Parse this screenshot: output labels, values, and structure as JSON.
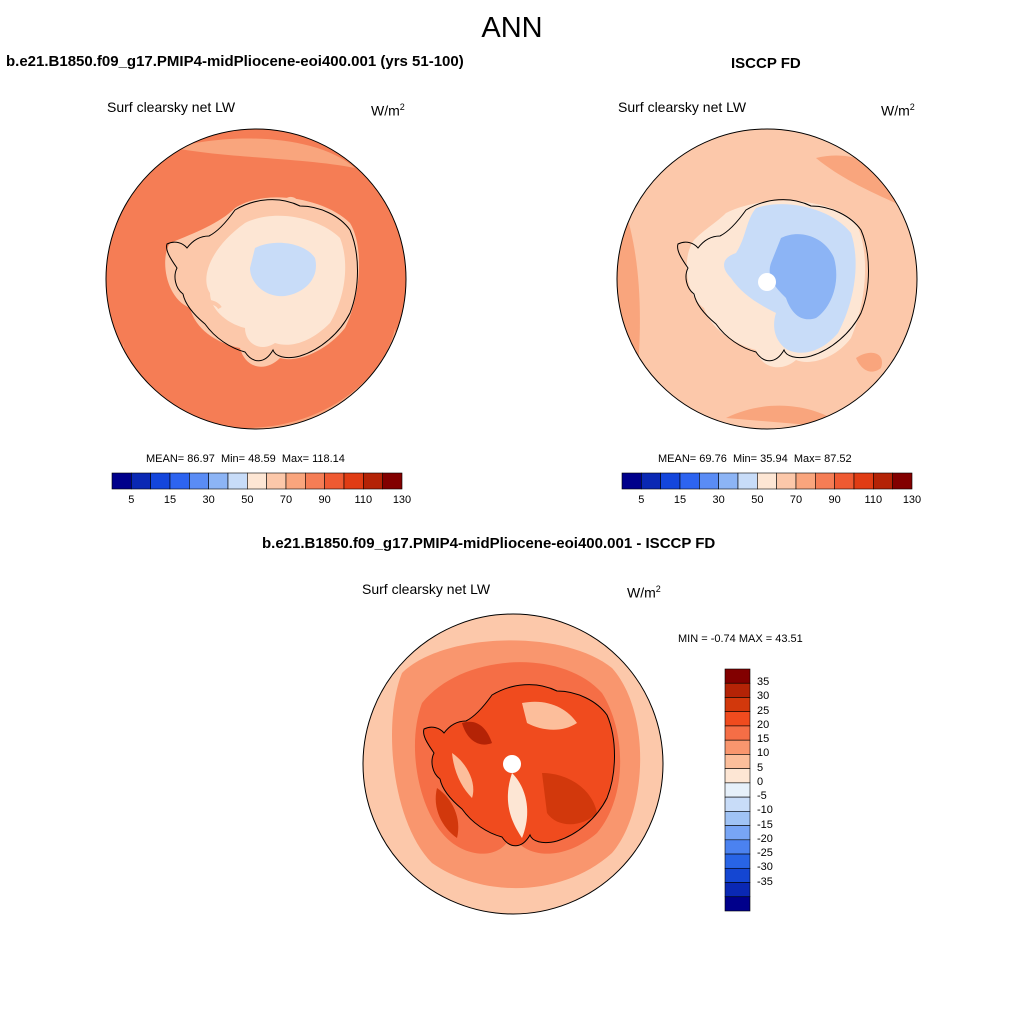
{
  "main_title": "ANN",
  "panels": {
    "model": {
      "title": "b.e21.B1850.f09_g17.PMIP4-midPliocene-eoi400.001 (yrs 51-100)",
      "variable": "Surf clearsky net LW",
      "units_base": "W/m",
      "units_exp": "2",
      "stats": {
        "mean_label": "MEAN=",
        "mean": "86.97",
        "min_label": "Min=",
        "min": "48.59",
        "max_label": "Max=",
        "max": "118.14"
      }
    },
    "obs": {
      "title": "ISCCP FD",
      "variable": "Surf clearsky net LW",
      "units_base": "W/m",
      "units_exp": "2",
      "stats": {
        "mean_label": "MEAN=",
        "mean": "69.76",
        "min_label": "Min=",
        "min": "35.94",
        "max_label": "Max=",
        "max": "87.52"
      }
    },
    "diff": {
      "title": "b.e21.B1850.f09_g17.PMIP4-midPliocene-eoi400.001 - ISCCP FD",
      "variable": "Surf clearsky net LW",
      "units_base": "W/m",
      "units_exp": "2",
      "stats": {
        "min_label": "MIN =",
        "min": "-0.74",
        "max_label": "MAX =",
        "max": "43.51"
      }
    }
  },
  "colorbar_top": {
    "colors": [
      "#00008b",
      "#0a28b4",
      "#1446dc",
      "#2d64f0",
      "#5a8cf5",
      "#8cb4f5",
      "#c8dcf8",
      "#fde6d4",
      "#fcc8aa",
      "#f9a57d",
      "#f57d55",
      "#ef5a32",
      "#e03c14",
      "#b42306",
      "#820000"
    ],
    "tick_labels": [
      "5",
      "15",
      "30",
      "50",
      "70",
      "90",
      "110",
      "130"
    ]
  },
  "colorbar_diff": {
    "colors": [
      "#820000",
      "#b42306",
      "#d2380c",
      "#f04b1e",
      "#f56e46",
      "#f9966e",
      "#fcbe9b",
      "#fde6d4",
      "#e6f0fa",
      "#c8dcf8",
      "#a0c3f5",
      "#78a5f5",
      "#4b82f0",
      "#2864e6",
      "#1446d2",
      "#0a28b4",
      "#00008b"
    ],
    "tick_labels": [
      "35",
      "30",
      "25",
      "20",
      "15",
      "10",
      "5",
      "0",
      "-5",
      "-10",
      "-15",
      "-20",
      "-25",
      "-30",
      "-35"
    ]
  },
  "map_fields": {
    "model": {
      "ocean": "#f57d55",
      "ocean_inner": "#f9a57d",
      "coast_band": "#fcc8aa",
      "interior": "#fde6d4",
      "center": "#c8dcf8"
    },
    "obs": {
      "ocean": "#fcc8aa",
      "ocean_outer": "#f9a57d",
      "coast_band": "#fde6d4",
      "interior": "#c8dcf8",
      "center": "#8cb4f5"
    },
    "diff": {
      "outer": "#fcc8aa",
      "mid": "#f9966e",
      "inner": "#f56e46",
      "land": "#f04b1e",
      "dark": "#d2380c",
      "darkest": "#b42306",
      "light": "#fde6d4"
    }
  }
}
